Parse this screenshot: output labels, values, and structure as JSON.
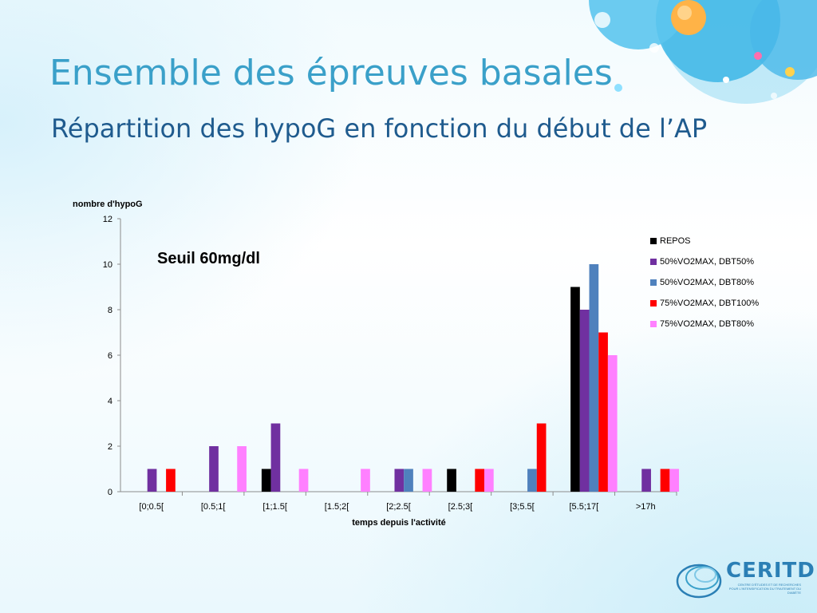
{
  "slide": {
    "title": "Ensemble des épreuves basales",
    "subtitle": "Répartition des hypoG en fonction du début de l’AP",
    "annotation": "Seuil 60mg/dl"
  },
  "logo": {
    "name": "CERITD",
    "tagline": "CENTRE D'ÉTUDES ET DE RECHERCHES POUR L'INTENSIFICATION DU TRAITEMENT DU DIABÈTE"
  },
  "chart_data": {
    "type": "bar",
    "title": "",
    "xlabel": "temps depuis l'activité",
    "ylabel": "nombre d'hypoG",
    "ylim": [
      0,
      12
    ],
    "yticks": [
      0,
      2,
      4,
      6,
      8,
      10,
      12
    ],
    "grid": false,
    "legend_position": "right",
    "categories": [
      "[0;0.5[",
      "[0.5;1[",
      "[1;1.5[",
      "[1.5;2[",
      "[2;2.5[",
      "[2.5;3[",
      "[3;5.5[",
      "[5.5;17[",
      ">17h"
    ],
    "series": [
      {
        "name": "REPOS",
        "color": "#000000",
        "values": [
          0,
          0,
          1,
          0,
          0,
          1,
          0,
          9,
          0
        ]
      },
      {
        "name": "50%VO2MAX, DBT50%",
        "color": "#7030a0",
        "values": [
          1,
          2,
          3,
          0,
          1,
          0,
          0,
          8,
          1
        ]
      },
      {
        "name": "50%VO2MAX, DBT80%",
        "color": "#4f81bd",
        "values": [
          0,
          0,
          0,
          0,
          1,
          0,
          1,
          10,
          0
        ]
      },
      {
        "name": "75%VO2MAX, DBT100%",
        "color": "#ff0000",
        "values": [
          1,
          0,
          0,
          0,
          0,
          1,
          3,
          7,
          1
        ]
      },
      {
        "name": "75%VO2MAX, DBT80%",
        "color": "#ff80ff",
        "values": [
          0,
          2,
          1,
          1,
          1,
          1,
          0,
          6,
          1
        ]
      }
    ]
  }
}
